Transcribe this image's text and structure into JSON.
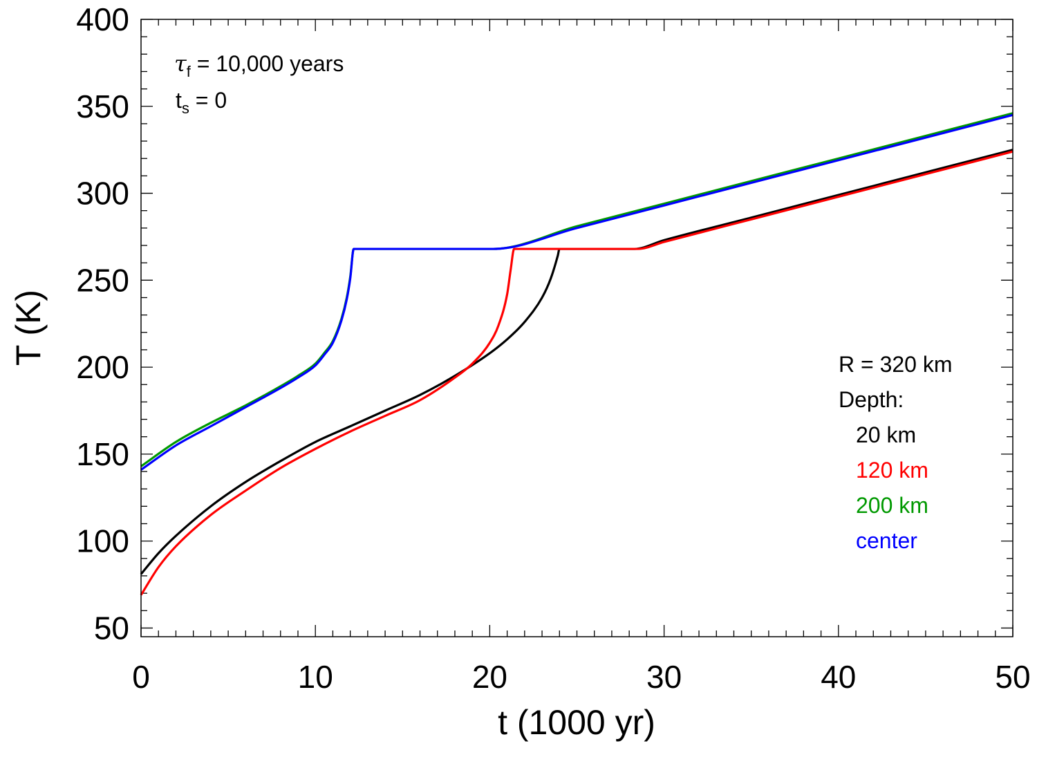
{
  "chart_data": {
    "type": "line",
    "title": "",
    "xlabel": "t (1000 yr)",
    "ylabel": "T (K)",
    "xlim": [
      0,
      50
    ],
    "ylim": [
      45,
      400
    ],
    "x_ticks": [
      0,
      10,
      20,
      30,
      40,
      50
    ],
    "x_tick_labels": [
      "0",
      "10",
      "20",
      "30",
      "40",
      "50"
    ],
    "y_ticks": [
      50,
      100,
      150,
      200,
      250,
      300,
      350,
      400
    ],
    "y_tick_labels": [
      "50",
      "100",
      "150",
      "200",
      "250",
      "300",
      "350",
      "400"
    ],
    "grid": false,
    "annotations": {
      "tau_symbol": "τ",
      "tau_sub": "f",
      "tau_rest": " = 10,000 years",
      "ts_symbol": "t",
      "ts_sub": "s",
      "ts_rest": " = 0"
    },
    "legend": {
      "placement": "lower-right",
      "header1": "R = 320 km",
      "header2": "Depth:"
    },
    "series": [
      {
        "name": "20 km",
        "color": "#000000",
        "x": [
          0,
          1,
          2,
          4,
          6,
          8,
          10,
          12,
          14,
          16,
          18,
          20,
          21,
          22,
          23,
          23.5,
          23.9,
          24,
          28.3,
          30,
          35,
          40,
          45,
          50
        ],
        "y": [
          81,
          93,
          103,
          120,
          134,
          146,
          157,
          166,
          175,
          184,
          195,
          208,
          216,
          226,
          240,
          251,
          264,
          268,
          268,
          273,
          286,
          299,
          312,
          325
        ]
      },
      {
        "name": "120 km",
        "color": "#ff0000",
        "x": [
          0,
          1,
          2,
          4,
          6,
          8,
          10,
          12,
          14,
          16,
          18,
          19,
          20,
          20.5,
          21,
          21.2,
          21.4,
          28.5,
          30,
          35,
          40,
          45,
          50
        ],
        "y": [
          69,
          85,
          97,
          115,
          129,
          142,
          153,
          163,
          172,
          181,
          194,
          202,
          214,
          224,
          242,
          256,
          268,
          268,
          272,
          285,
          298,
          311,
          324
        ]
      },
      {
        "name": "200 km",
        "color": "#009900",
        "x": [
          0,
          2,
          4,
          6,
          8,
          9,
          10,
          10.5,
          11,
          11.5,
          11.8,
          12,
          12.2,
          20.2,
          25,
          30,
          35,
          40,
          45,
          50
        ],
        "y": [
          143,
          157,
          168,
          178,
          189,
          195,
          202,
          208,
          215,
          228,
          240,
          252,
          268,
          268,
          281,
          294,
          307,
          320,
          333,
          346
        ]
      },
      {
        "name": "center",
        "color": "#0000ff",
        "x": [
          0,
          2,
          4,
          6,
          8,
          9,
          10,
          10.5,
          11,
          11.5,
          11.8,
          12,
          12.2,
          20.2,
          25,
          30,
          35,
          40,
          45,
          50
        ],
        "y": [
          141,
          155,
          166,
          177,
          188,
          194,
          201,
          207,
          214,
          227,
          239,
          251,
          268,
          268,
          280,
          293,
          306,
          319,
          332,
          345
        ]
      }
    ]
  }
}
